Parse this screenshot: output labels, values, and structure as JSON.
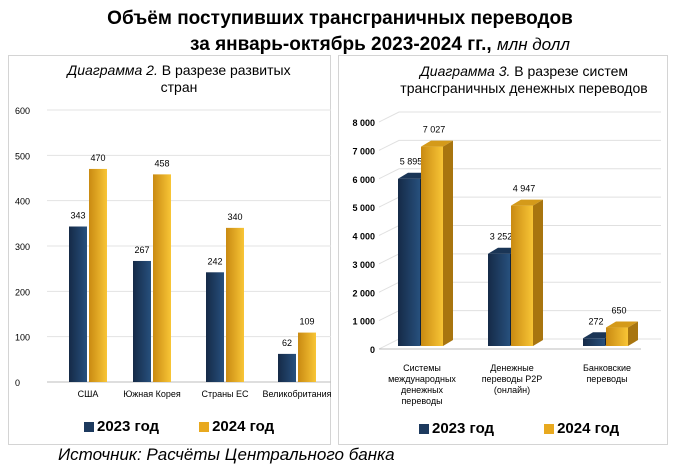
{
  "title": {
    "line1": "Объём поступивших трансграничных переводов",
    "line2": "за январь-октябрь 2023-2024 гг.,",
    "unit": "млн долл"
  },
  "source": "Источник: Расчёты Центрального банка",
  "colors": {
    "y2023": "#1d3a5e",
    "y2024": "#e8a91f"
  },
  "chart_data": [
    {
      "type": "bar",
      "title_italic": "Диаграмма 2.",
      "title": "В разрезе развитых стран",
      "categories": [
        "США",
        "Южная Корея",
        "Страны ЕС",
        "Великобритания"
      ],
      "series": [
        {
          "name": "2023 год",
          "values": [
            343,
            267,
            242,
            62
          ],
          "labels": [
            "343",
            "267",
            "242",
            "62"
          ]
        },
        {
          "name": "2024 год",
          "values": [
            470,
            458,
            340,
            109
          ],
          "labels": [
            "470",
            "458",
            "340",
            "109"
          ]
        }
      ],
      "yticks": [
        "0",
        "100",
        "200",
        "300",
        "400",
        "500",
        "600"
      ],
      "ylim": [
        0,
        600
      ],
      "grid": true,
      "legend": "bottom"
    },
    {
      "type": "bar",
      "title_italic": "Диаграмма 3.",
      "title": "В разрезе систем трансграничных денежных переводов",
      "categories": [
        [
          "Системы",
          "международных",
          "денежных",
          "переводы"
        ],
        [
          "Денежные",
          "переводы P2P",
          "(онлайн)"
        ],
        [
          "Банковские",
          "переводы"
        ]
      ],
      "series": [
        {
          "name": "2023 год",
          "values": [
            5895,
            3252,
            272
          ],
          "labels": [
            "5 895",
            "3 252",
            "272"
          ]
        },
        {
          "name": "2024 год",
          "values": [
            7027,
            4947,
            650
          ],
          "labels": [
            "7 027",
            "4 947",
            "650"
          ]
        }
      ],
      "yticks": [
        "0",
        "1 000",
        "2 000",
        "3 000",
        "4 000",
        "5 000",
        "6 000",
        "7 000",
        "8 000"
      ],
      "ylim": [
        0,
        8000
      ],
      "grid": true,
      "legend": "bottom"
    }
  ]
}
